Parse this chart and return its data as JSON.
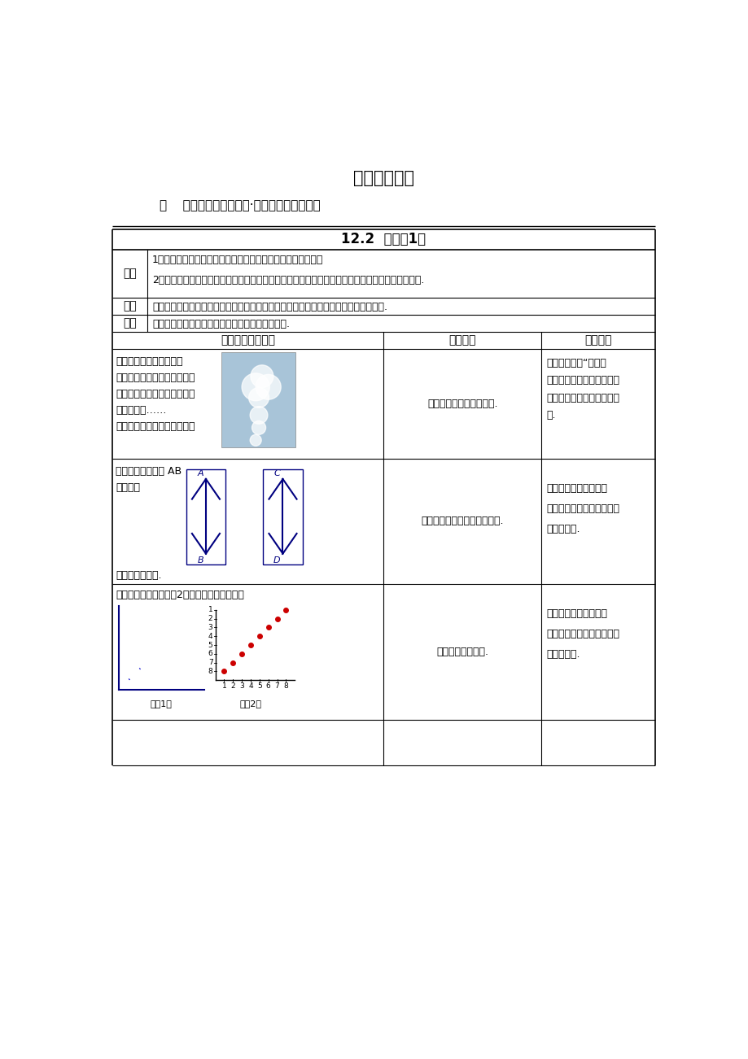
{
  "title": "数学教学设计",
  "subtitle_label": "教    材：义务教育教科书·数学（七年级下册）",
  "section_title": "12.2  证明（1）",
  "col1_label": "目标",
  "col1_text1": "1．能在观察、实验、操作的基础上，对所作的猜想加以证实；",
  "col1_text2": "2．通过积极参与，获得正确的数学推理方法，理解数学的严谨、严密性，并培养与他人合作的意识.",
  "col2_label": "重点",
  "col2_text": "学会判断一个数学结论必须一步一步、有理有据地进行推理并进一步感受说理的必要性.",
  "col3_label": "难点",
  "col3_text": "初步学会说理，并发展有条理的思考和表达的能力.",
  "header_col1": "教学过程（教师）",
  "header_col2": "学生活动",
  "header_col3": "设计思路",
  "row1_col1": [
    "说过或见过海市蚁楼吗？",
    "宁静无风的海面或沙漠上，有",
    "台、亭阁、集市、庙宇等虚幻",
    "上方的空中……",
    "看到的景象是真实存在的吗？"
  ],
  "row1_col2": "学生各自发表意见和想法.",
  "row1_col3": [
    "较好地发挥了“情景导",
    "在好奇心的驱动之下，学生",
    "容易就产生了继续学习、探",
    "望."
  ],
  "row2_col2": "学生观看思考动手操作并回答.",
  "row2_col3": [
    "通过观察和实验操作来",
    "判断是否有误，生活中，有",
    "类似的现象."
  ],
  "row3_col1": "中有曲线吗？请把图（2）中编号相同的点用线",
  "row3_col2": "观察、思考、感悟.",
  "row3_col3": [
    "通过观察和实验操作来",
    "判断是否有误，生活中，有",
    "类似的现象."
  ],
  "fig1_label": "（图1）",
  "fig2_label": "（图2）",
  "bg_color": "#ffffff",
  "text_color": "#000000"
}
